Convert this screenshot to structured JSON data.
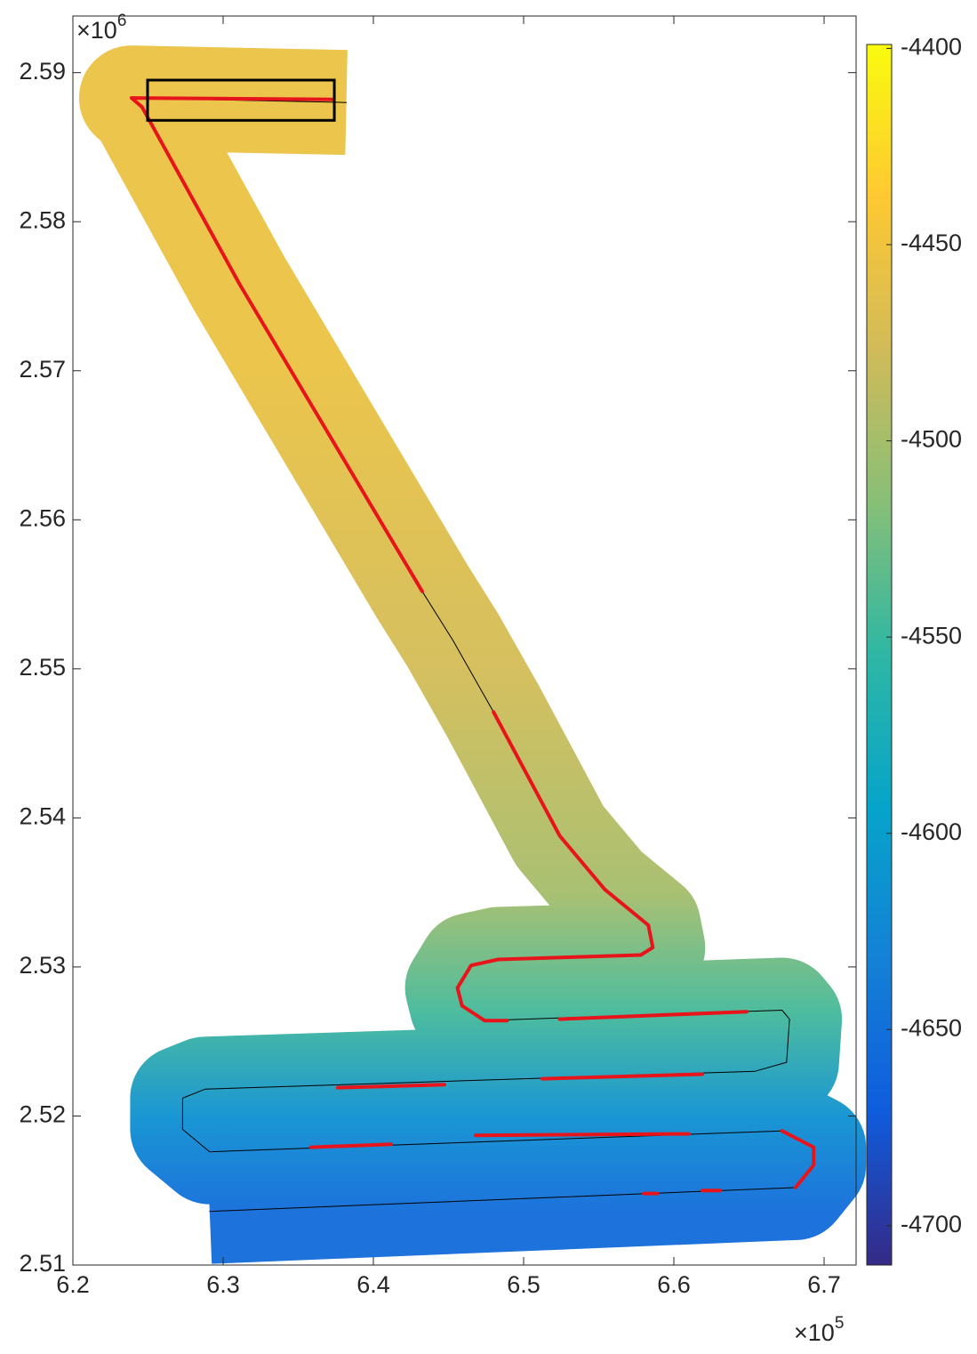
{
  "chart_data": {
    "type": "map",
    "xlim": [
      6.2,
      6.7213
    ],
    "ylim": [
      2.51,
      2.5938
    ],
    "xticks": [
      6.2,
      6.3,
      6.4,
      6.5,
      6.6,
      6.7
    ],
    "yticks": [
      2.51,
      2.52,
      2.53,
      2.54,
      2.55,
      2.56,
      2.57,
      2.58,
      2.59
    ],
    "x_multiplier": {
      "base": "×10",
      "exponent": "5"
    },
    "y_multiplier": {
      "base": "×10",
      "exponent": "6"
    },
    "depth_profile": {
      "y": [
        2.5135,
        2.52,
        2.527,
        2.535,
        2.55,
        2.57,
        2.59
      ],
      "depth": [
        -4655,
        -4615,
        -4545,
        -4500,
        -4475,
        -4455,
        -4455
      ]
    },
    "series": [
      {
        "color": "#000000",
        "width": 1,
        "x": [
          6.382,
          6.239,
          6.246,
          6.311,
          6.4325,
          6.453,
          6.48,
          6.524,
          6.554,
          6.583,
          6.586,
          6.578,
          6.483,
          6.465,
          6.456,
          6.459,
          6.474,
          6.672,
          6.677,
          6.675,
          6.654,
          6.288,
          6.273,
          6.273,
          6.291,
          6.672,
          6.693,
          6.693,
          6.681,
          6.291
        ],
        "y": [
          2.588,
          2.5883,
          2.5877,
          2.5758,
          2.5552,
          2.5519,
          2.5471,
          2.5388,
          2.5352,
          2.5328,
          2.5313,
          2.5308,
          2.5305,
          2.5301,
          2.5286,
          2.5274,
          2.5264,
          2.5271,
          2.5265,
          2.5236,
          2.523,
          2.5218,
          2.5212,
          2.5191,
          2.5176,
          2.519,
          2.5179,
          2.5167,
          2.5152,
          2.5136
        ]
      },
      {
        "color": "#e8141b",
        "width": 4,
        "x": [
          6.373,
          6.239,
          6.246,
          6.311,
          6.4325,
          null,
          6.48,
          6.524,
          6.554,
          6.583,
          6.586,
          6.578,
          6.483,
          6.465,
          6.456,
          6.459,
          6.474,
          6.489,
          null,
          6.524,
          6.6485,
          null,
          6.5124,
          6.619,
          null,
          6.3763,
          6.4473,
          null,
          6.468,
          6.61,
          null,
          6.3586,
          6.4118,
          null,
          6.672,
          6.693,
          6.693,
          6.681,
          null,
          6.619,
          6.631,
          null,
          6.58,
          6.589
        ],
        "y": [
          2.5882,
          2.5883,
          2.5877,
          2.5758,
          2.5552,
          null,
          2.5471,
          2.5388,
          2.5352,
          2.5328,
          2.5313,
          2.5308,
          2.5305,
          2.5301,
          2.5286,
          2.5274,
          2.5264,
          2.5264,
          null,
          2.5265,
          2.527,
          null,
          2.5225,
          2.5228,
          null,
          2.5219,
          2.5221,
          null,
          2.5187,
          2.5188,
          null,
          2.5179,
          2.5181,
          null,
          2.519,
          2.5179,
          2.5167,
          2.5152,
          null,
          2.515,
          2.515,
          null,
          2.5148,
          2.5148
        ]
      }
    ],
    "box": {
      "x": [
        6.2497,
        6.374
      ],
      "y": [
        2.5868,
        2.5895
      ],
      "color": "#000000"
    },
    "colorbar": {
      "clim": [
        -4710,
        -4399
      ],
      "ticks": [
        -4400,
        -4450,
        -4500,
        -4550,
        -4600,
        -4650,
        -4700
      ],
      "colormap": [
        "#352a87",
        "#0f5cdd",
        "#1481d6",
        "#06a4ca",
        "#2eb7a4",
        "#87bf77",
        "#d1bb59",
        "#fec832",
        "#f9fb0e"
      ]
    }
  }
}
